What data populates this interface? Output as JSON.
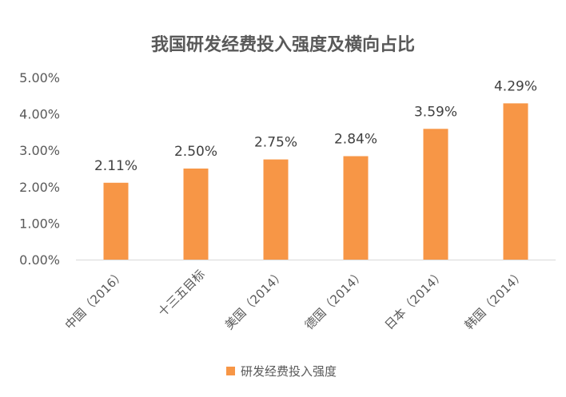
{
  "chart_data": {
    "type": "bar",
    "title": "我国研发经费投入强度及横向占比",
    "categories": [
      "中国（2016）",
      "十三五目标",
      "美国（2014）",
      "德国（2014）",
      "日本（2014）",
      "韩国（2014）"
    ],
    "series": [
      {
        "name": "研发经费投入强度",
        "values": [
          2.11,
          2.5,
          2.75,
          2.84,
          3.59,
          4.29
        ],
        "labels": [
          "2.11%",
          "2.50%",
          "2.75%",
          "2.84%",
          "3.59%",
          "4.29%"
        ],
        "color": "#F79646"
      }
    ],
    "ylim": [
      0,
      5
    ],
    "yticks": [
      "0.00%",
      "1.00%",
      "2.00%",
      "3.00%",
      "4.00%",
      "5.00%"
    ],
    "grid": false,
    "legend": "bottom"
  }
}
